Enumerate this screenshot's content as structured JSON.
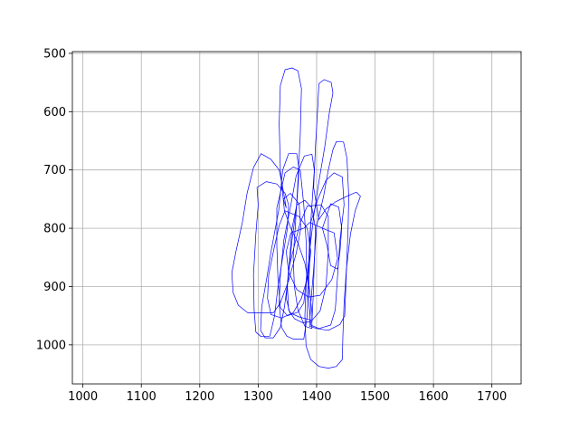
{
  "chart_data": {
    "type": "line",
    "title": "",
    "xlabel": "",
    "ylabel": "",
    "xlim": [
      982,
      1750
    ],
    "ylim": [
      1067,
      497
    ],
    "y_inverted": true,
    "grid": true,
    "xticks": [
      "1000",
      "1100",
      "1200",
      "1300",
      "1400",
      "1500",
      "1600",
      "1700"
    ],
    "xtick_values": [
      1000,
      1100,
      1200,
      1300,
      1400,
      1500,
      1600,
      1700
    ],
    "yticks": [
      "500",
      "600",
      "700",
      "800",
      "900",
      "1000"
    ],
    "ytick_values": [
      500,
      600,
      700,
      800,
      900,
      1000
    ],
    "line_color": "#0000ff",
    "series": [
      {
        "points": [
          [
            1345,
            770
          ],
          [
            1338,
            700
          ],
          [
            1336,
            620
          ],
          [
            1338,
            555
          ],
          [
            1346,
            528
          ],
          [
            1358,
            525
          ],
          [
            1368,
            530
          ],
          [
            1374,
            560
          ],
          [
            1372,
            640
          ],
          [
            1368,
            720
          ],
          [
            1364,
            790
          ],
          [
            1360,
            850
          ],
          [
            1362,
            900
          ],
          [
            1368,
            940
          ],
          [
            1380,
            968
          ],
          [
            1392,
            972
          ],
          [
            1392,
            945
          ],
          [
            1388,
            905
          ],
          [
            1380,
            860
          ],
          [
            1368,
            825
          ],
          [
            1356,
            800
          ],
          [
            1345,
            770
          ]
        ]
      },
      {
        "points": [
          [
            1395,
            730
          ],
          [
            1398,
            660
          ],
          [
            1402,
            590
          ],
          [
            1404,
            552
          ],
          [
            1413,
            545
          ],
          [
            1425,
            550
          ],
          [
            1428,
            568
          ],
          [
            1422,
            600
          ],
          [
            1414,
            660
          ],
          [
            1404,
            720
          ],
          [
            1395,
            780
          ],
          [
            1388,
            840
          ],
          [
            1382,
            900
          ],
          [
            1380,
            950
          ],
          [
            1382,
            1002
          ],
          [
            1390,
            1025
          ],
          [
            1404,
            1037
          ],
          [
            1420,
            1040
          ],
          [
            1434,
            1037
          ],
          [
            1444,
            1025
          ],
          [
            1445,
            985
          ],
          [
            1447,
            930
          ],
          [
            1451,
            870
          ],
          [
            1458,
            810
          ],
          [
            1466,
            770
          ],
          [
            1475,
            745
          ],
          [
            1468,
            738
          ],
          [
            1452,
            745
          ],
          [
            1432,
            755
          ],
          [
            1416,
            767
          ],
          [
            1404,
            785
          ],
          [
            1395,
            730
          ]
        ]
      },
      {
        "points": [
          [
            1348,
            765
          ],
          [
            1342,
            730
          ],
          [
            1336,
            700
          ],
          [
            1322,
            682
          ],
          [
            1305,
            672
          ],
          [
            1292,
            696
          ],
          [
            1281,
            740
          ],
          [
            1273,
            790
          ],
          [
            1262,
            840
          ],
          [
            1255,
            876
          ],
          [
            1257,
            910
          ],
          [
            1266,
            932
          ],
          [
            1282,
            945
          ],
          [
            1326,
            945
          ],
          [
            1338,
            928
          ],
          [
            1352,
            890
          ],
          [
            1365,
            843
          ],
          [
            1373,
            800
          ],
          [
            1370,
            758
          ],
          [
            1355,
            740
          ],
          [
            1343,
            750
          ],
          [
            1348,
            765
          ]
        ]
      },
      {
        "points": [
          [
            1356,
            760
          ],
          [
            1365,
            710
          ],
          [
            1379,
            676
          ],
          [
            1392,
            673
          ],
          [
            1396,
            700
          ],
          [
            1392,
            760
          ],
          [
            1388,
            820
          ],
          [
            1385,
            900
          ],
          [
            1384,
            950
          ],
          [
            1378,
            990
          ],
          [
            1360,
            990
          ],
          [
            1349,
            985
          ],
          [
            1340,
            970
          ],
          [
            1336,
            930
          ],
          [
            1338,
            880
          ],
          [
            1344,
            820
          ],
          [
            1356,
            760
          ]
        ]
      },
      {
        "points": [
          [
            1400,
            796
          ],
          [
            1412,
            745
          ],
          [
            1420,
            700
          ],
          [
            1428,
            665
          ],
          [
            1434,
            651
          ],
          [
            1446,
            652
          ],
          [
            1452,
            680
          ],
          [
            1455,
            745
          ],
          [
            1454,
            800
          ],
          [
            1452,
            850
          ],
          [
            1450,
            900
          ],
          [
            1448,
            950
          ],
          [
            1440,
            965
          ],
          [
            1420,
            975
          ],
          [
            1400,
            972
          ],
          [
            1388,
            968
          ],
          [
            1390,
            930
          ],
          [
            1395,
            870
          ],
          [
            1400,
            796
          ]
        ]
      },
      {
        "points": [
          [
            1390,
            790
          ],
          [
            1402,
            750
          ],
          [
            1416,
            718
          ],
          [
            1430,
            705
          ],
          [
            1444,
            712
          ],
          [
            1447,
            760
          ],
          [
            1440,
            820
          ],
          [
            1436,
            880
          ],
          [
            1432,
            940
          ],
          [
            1424,
            966
          ],
          [
            1404,
            972
          ],
          [
            1390,
            966
          ],
          [
            1386,
            920
          ],
          [
            1388,
            855
          ],
          [
            1390,
            790
          ]
        ]
      },
      {
        "points": [
          [
            1410,
            800
          ],
          [
            1424,
            758
          ],
          [
            1438,
            764
          ],
          [
            1443,
            800
          ],
          [
            1440,
            840
          ],
          [
            1436,
            870
          ],
          [
            1424,
            864
          ],
          [
            1418,
            830
          ],
          [
            1410,
            800
          ]
        ]
      },
      {
        "points": [
          [
            1378,
            800
          ],
          [
            1388,
            790
          ],
          [
            1410,
            800
          ],
          [
            1430,
            808
          ],
          [
            1436,
            852
          ],
          [
            1426,
            888
          ],
          [
            1406,
            915
          ],
          [
            1386,
            918
          ],
          [
            1366,
            905
          ],
          [
            1352,
            875
          ],
          [
            1348,
            840
          ],
          [
            1356,
            808
          ],
          [
            1378,
            800
          ]
        ]
      },
      {
        "points": [
          [
            1332,
            765
          ],
          [
            1346,
            705
          ],
          [
            1360,
            695
          ],
          [
            1372,
            700
          ],
          [
            1378,
            760
          ],
          [
            1382,
            820
          ],
          [
            1383,
            880
          ],
          [
            1378,
            928
          ],
          [
            1368,
            944
          ],
          [
            1350,
            950
          ],
          [
            1338,
            936
          ],
          [
            1334,
            890
          ],
          [
            1332,
            830
          ],
          [
            1332,
            765
          ]
        ]
      },
      {
        "points": [
          [
            1372,
            790
          ],
          [
            1384,
            762
          ],
          [
            1408,
            760
          ],
          [
            1420,
            780
          ],
          [
            1420,
            840
          ],
          [
            1416,
            900
          ],
          [
            1406,
            942
          ],
          [
            1392,
            958
          ],
          [
            1370,
            952
          ],
          [
            1354,
            945
          ],
          [
            1348,
            920
          ],
          [
            1352,
            870
          ],
          [
            1362,
            830
          ],
          [
            1372,
            790
          ]
        ]
      },
      {
        "points": [
          [
            1300,
            760
          ],
          [
            1298,
            730
          ],
          [
            1314,
            720
          ],
          [
            1332,
            724
          ],
          [
            1346,
            740
          ],
          [
            1352,
            760
          ],
          [
            1350,
            800
          ],
          [
            1342,
            850
          ],
          [
            1334,
            900
          ],
          [
            1328,
            950
          ],
          [
            1320,
            985
          ],
          [
            1305,
            986
          ],
          [
            1296,
            978
          ],
          [
            1293,
            940
          ],
          [
            1292,
            880
          ],
          [
            1296,
            810
          ],
          [
            1300,
            760
          ]
        ]
      },
      {
        "points": [
          [
            1335,
            770
          ],
          [
            1342,
            700
          ],
          [
            1352,
            672
          ],
          [
            1366,
            672
          ],
          [
            1370,
            700
          ],
          [
            1366,
            760
          ],
          [
            1358,
            820
          ],
          [
            1352,
            880
          ],
          [
            1345,
            935
          ],
          [
            1338,
            970
          ],
          [
            1326,
            988
          ],
          [
            1312,
            988
          ],
          [
            1304,
            975
          ],
          [
            1306,
            935
          ],
          [
            1314,
            890
          ],
          [
            1322,
            840
          ],
          [
            1335,
            770
          ]
        ]
      },
      {
        "points": [
          [
            1358,
            800
          ],
          [
            1366,
            760
          ],
          [
            1380,
            752
          ],
          [
            1392,
            765
          ],
          [
            1398,
            800
          ],
          [
            1396,
            860
          ],
          [
            1394,
            920
          ],
          [
            1392,
            960
          ],
          [
            1376,
            962
          ],
          [
            1362,
            955
          ],
          [
            1352,
            940
          ],
          [
            1350,
            900
          ],
          [
            1354,
            850
          ],
          [
            1358,
            800
          ]
        ]
      },
      {
        "points": [
          [
            1336,
            795
          ],
          [
            1346,
            770
          ],
          [
            1370,
            780
          ],
          [
            1384,
            800
          ],
          [
            1390,
            840
          ],
          [
            1386,
            880
          ],
          [
            1374,
            920
          ],
          [
            1360,
            945
          ],
          [
            1340,
            954
          ],
          [
            1322,
            948
          ],
          [
            1316,
            920
          ],
          [
            1318,
            880
          ],
          [
            1326,
            840
          ],
          [
            1336,
            795
          ]
        ]
      }
    ]
  }
}
